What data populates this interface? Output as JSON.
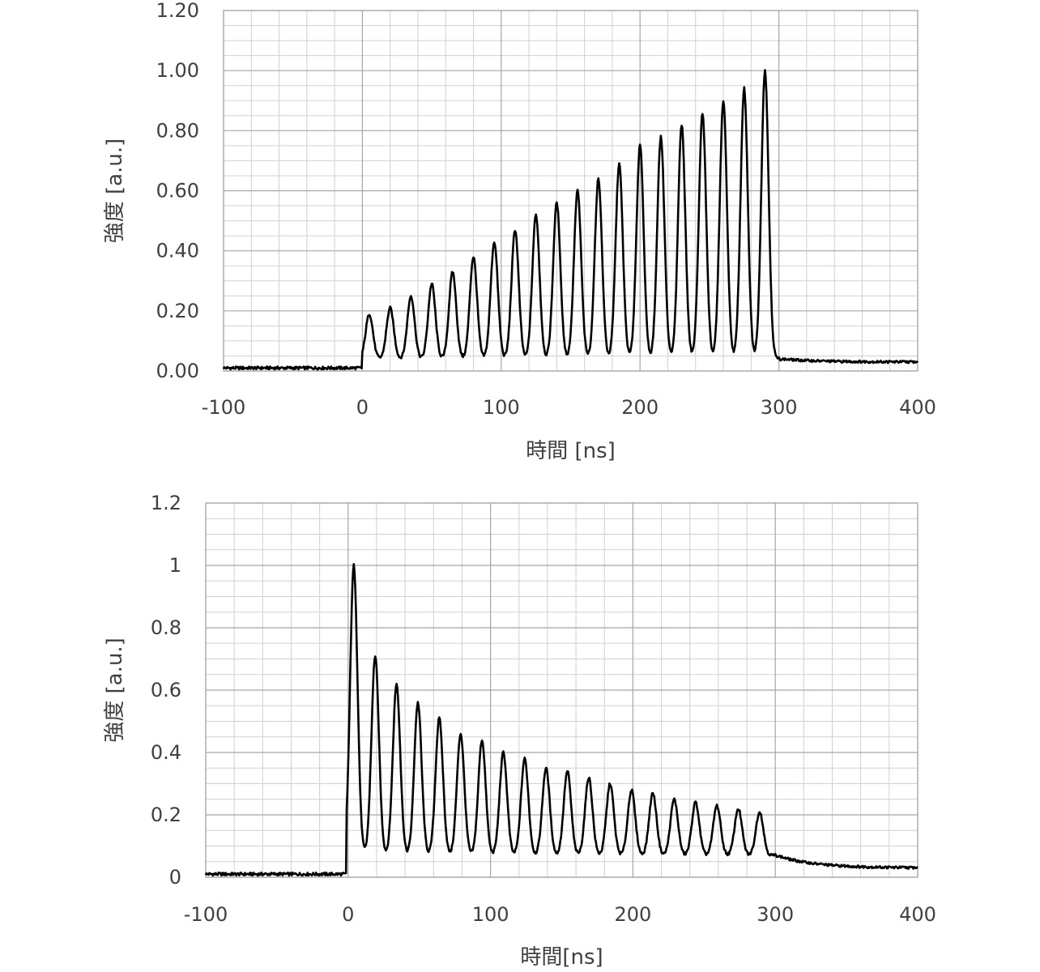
{
  "chart_data": [
    {
      "type": "line",
      "xlabel": "時間 [ns]",
      "ylabel": "強度 [a.u.]",
      "xlim": [
        -100,
        400
      ],
      "ylim": [
        0,
        1.2
      ],
      "x_ticks": [
        "-100",
        "0",
        "100",
        "200",
        "300",
        "400"
      ],
      "y_ticks": [
        "0.00",
        "0.20",
        "0.40",
        "0.60",
        "0.80",
        "1.00",
        "1.20"
      ],
      "grid": true,
      "pulse_times": [
        5,
        20,
        35,
        50,
        65,
        80,
        95,
        110,
        125,
        140,
        155,
        170,
        185,
        200,
        215,
        230,
        245,
        260,
        275,
        290
      ],
      "peak_values": [
        0.19,
        0.21,
        0.25,
        0.29,
        0.33,
        0.38,
        0.43,
        0.47,
        0.52,
        0.56,
        0.6,
        0.64,
        0.69,
        0.75,
        0.78,
        0.82,
        0.86,
        0.9,
        0.94,
        1.0
      ],
      "baseline_before": 0.01,
      "valley_values": 0.04,
      "tail_level": 0.03
    },
    {
      "type": "line",
      "xlabel": "時間[ns]",
      "ylabel": "強度 [a.u.]",
      "xlim": [
        -100,
        400
      ],
      "ylim": [
        0,
        1.2
      ],
      "x_ticks": [
        "-100",
        "0",
        "100",
        "200",
        "300",
        "400"
      ],
      "y_ticks": [
        "0",
        "0.2",
        "0.4",
        "0.6",
        "0.8",
        "1",
        "1.2"
      ],
      "grid": true,
      "pulse_times": [
        4,
        19,
        34,
        49,
        64,
        79,
        94,
        109,
        124,
        139,
        154,
        169,
        184,
        199,
        214,
        229,
        244,
        259,
        274,
        289
      ],
      "peak_values": [
        1.0,
        0.71,
        0.62,
        0.56,
        0.51,
        0.46,
        0.44,
        0.4,
        0.38,
        0.35,
        0.34,
        0.32,
        0.3,
        0.28,
        0.27,
        0.25,
        0.24,
        0.23,
        0.22,
        0.21
      ],
      "baseline_before": 0.01,
      "valley_values": 0.07,
      "tail_level": 0.03
    }
  ]
}
